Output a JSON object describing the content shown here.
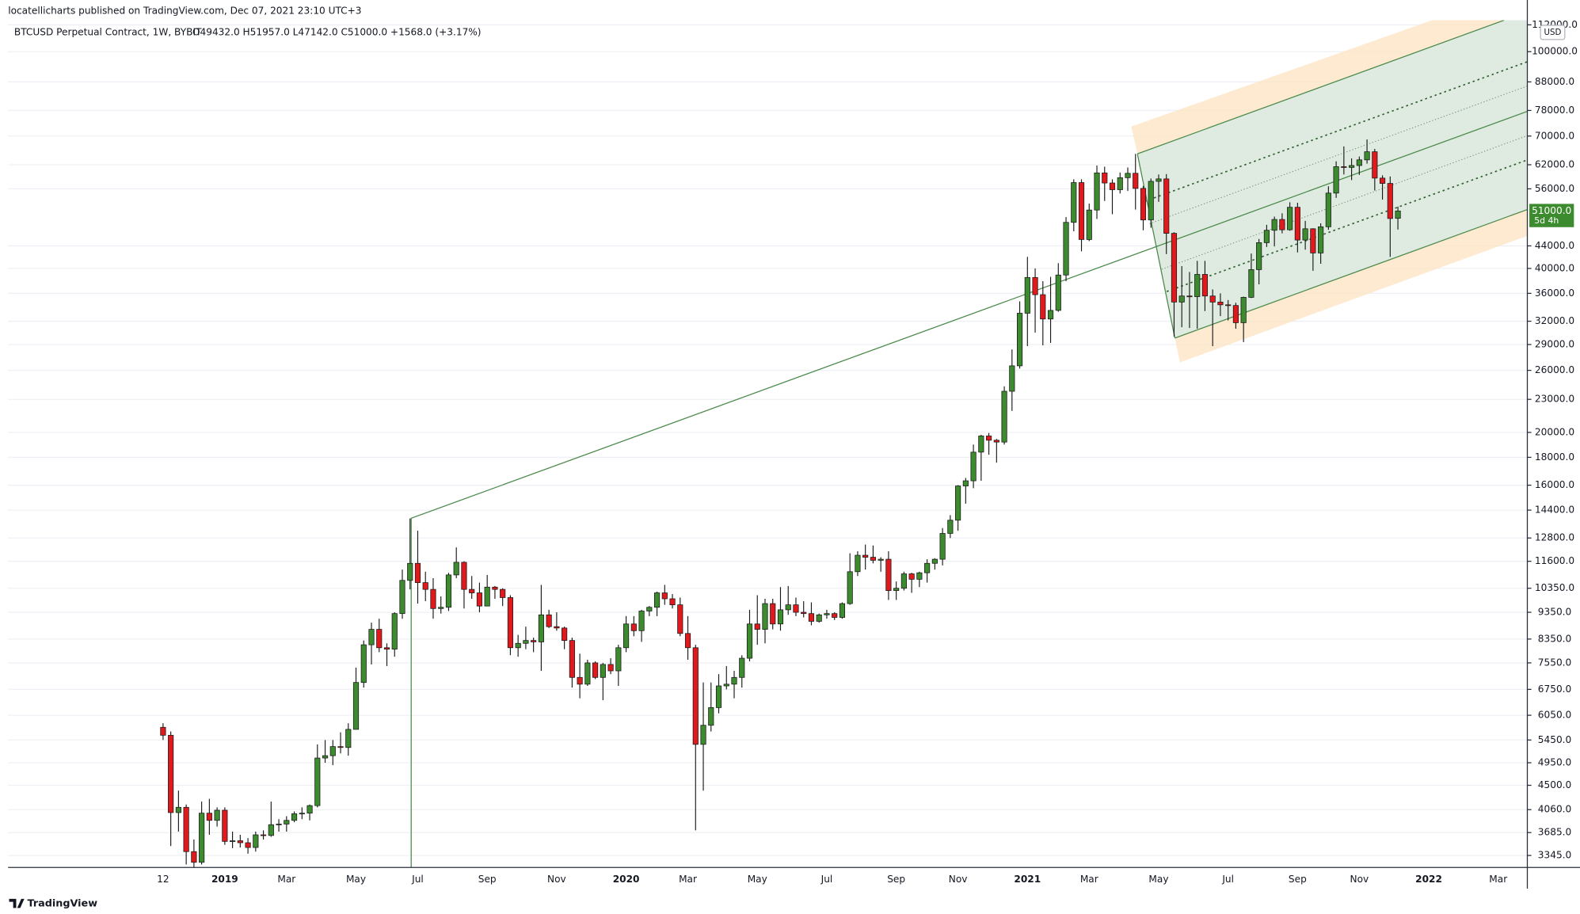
{
  "header": {
    "publisher": "locatellicharts published on TradingView.com, Dec 07, 2021 23:10 UTC+3",
    "brand": "TradingView"
  },
  "chart_data": {
    "type": "candlestick",
    "symbol": "BTCUSD Perpetual Contract, 1W, BYBIT",
    "ohlc_legend": "O49432.0 H51957.0 L47142.0 C51000.0 +1568.0 (+3.17%)",
    "currency": "USD",
    "log_scale": true,
    "grid": true,
    "up_color": "#3d8b2f",
    "down_color": "#e0191c",
    "categories": [
      "12",
      null,
      null,
      null,
      null,
      null,
      null,
      null,
      "2019",
      null,
      null,
      null,
      null,
      null,
      null,
      null,
      "Mar",
      null,
      null,
      null,
      null,
      null,
      null,
      null,
      null,
      "May",
      null,
      null,
      null,
      null,
      null,
      null,
      null,
      "Jul",
      null,
      null,
      null,
      null,
      null,
      null,
      null,
      null,
      "Sep",
      null,
      null,
      null,
      null,
      null,
      null,
      null,
      null,
      "Nov",
      null,
      null,
      null,
      null,
      null,
      null,
      null,
      null,
      "2020",
      null,
      null,
      null,
      null,
      null,
      null,
      null,
      "Mar",
      null,
      null,
      null,
      null,
      null,
      null,
      null,
      null,
      "May",
      null,
      null,
      null,
      null,
      null,
      null,
      null,
      null,
      "Jul",
      null,
      null,
      null,
      null,
      null,
      null,
      null,
      null,
      "Sep",
      null,
      null,
      null,
      null,
      null,
      null,
      null,
      "Nov",
      null,
      null,
      null,
      null,
      null,
      null,
      null,
      null,
      "2021",
      null,
      null,
      null,
      null,
      null,
      null,
      null,
      "Mar",
      null,
      null,
      null,
      null,
      null,
      null,
      null,
      null,
      "May",
      null,
      null,
      null,
      null,
      null,
      null,
      null,
      null,
      "Jul",
      null,
      null,
      null,
      null,
      null,
      null,
      null,
      null,
      "Sep",
      null,
      null,
      null,
      null,
      null,
      null,
      null,
      "Nov",
      null,
      null,
      null,
      null,
      null,
      null,
      null,
      null,
      "2022",
      null,
      null,
      null,
      null,
      null,
      null,
      null,
      null,
      "Mar",
      null,
      null,
      null,
      null
    ],
    "values": [
      [
        5750,
        5850,
        5450,
        5560
      ],
      [
        5560,
        5650,
        3480,
        4010
      ],
      [
        4010,
        4400,
        3700,
        4100
      ],
      [
        4100,
        4150,
        3220,
        3400
      ],
      [
        3400,
        3580,
        3180,
        3250
      ],
      [
        3250,
        4200,
        3220,
        4000
      ],
      [
        4000,
        4250,
        3650,
        3880
      ],
      [
        3880,
        4100,
        3780,
        4050
      ],
      [
        4050,
        4100,
        3500,
        3550
      ],
      [
        3550,
        3700,
        3450,
        3560
      ],
      [
        3560,
        3650,
        3460,
        3530
      ],
      [
        3530,
        3600,
        3370,
        3460
      ],
      [
        3460,
        3700,
        3400,
        3650
      ],
      [
        3650,
        3720,
        3580,
        3640
      ],
      [
        3640,
        4200,
        3620,
        3810
      ],
      [
        3810,
        3900,
        3700,
        3820
      ],
      [
        3820,
        3950,
        3700,
        3880
      ],
      [
        3880,
        4030,
        3850,
        3990
      ],
      [
        3990,
        4100,
        3900,
        4000
      ],
      [
        4000,
        4150,
        3880,
        4130
      ],
      [
        4130,
        5350,
        4100,
        5050
      ],
      [
        5050,
        5450,
        4950,
        5100
      ],
      [
        5100,
        5450,
        4900,
        5300
      ],
      [
        5300,
        5630,
        5150,
        5280
      ],
      [
        5280,
        5850,
        5100,
        5700
      ],
      [
        5700,
        7400,
        5700,
        6950
      ],
      [
        6950,
        8300,
        6800,
        8150
      ],
      [
        8150,
        8950,
        7500,
        8700
      ],
      [
        8700,
        9100,
        7900,
        8050
      ],
      [
        8050,
        8200,
        7450,
        8000
      ],
      [
        8000,
        9350,
        7750,
        9300
      ],
      [
        9300,
        11200,
        9100,
        10700
      ],
      [
        10700,
        13900,
        10300,
        11500
      ],
      [
        11500,
        13200,
        9700,
        10600
      ],
      [
        10600,
        11100,
        9800,
        10300
      ],
      [
        10300,
        10800,
        9100,
        9500
      ],
      [
        9500,
        10000,
        9300,
        9550
      ],
      [
        9550,
        11050,
        9400,
        10950
      ],
      [
        10950,
        12300,
        10800,
        11550
      ],
      [
        11550,
        11600,
        9500,
        10300
      ],
      [
        10300,
        10900,
        9900,
        10150
      ],
      [
        10150,
        10600,
        9350,
        9600
      ],
      [
        9600,
        10950,
        9600,
        10400
      ],
      [
        10400,
        10450,
        9900,
        10300
      ],
      [
        10300,
        10350,
        9600,
        9950
      ],
      [
        9950,
        10050,
        7800,
        8050
      ],
      [
        8050,
        8500,
        7750,
        8200
      ],
      [
        8200,
        8800,
        8000,
        8300
      ],
      [
        8300,
        8400,
        7900,
        8250
      ],
      [
        8250,
        10500,
        7300,
        9250
      ],
      [
        9250,
        9450,
        8750,
        8800
      ],
      [
        8800,
        9350,
        8650,
        8750
      ],
      [
        8750,
        8800,
        8000,
        8300
      ],
      [
        8300,
        8400,
        6800,
        7100
      ],
      [
        7100,
        7850,
        6500,
        6900
      ],
      [
        6900,
        7650,
        6850,
        7550
      ],
      [
        7550,
        7600,
        7050,
        7100
      ],
      [
        7100,
        7550,
        6450,
        7500
      ],
      [
        7500,
        7700,
        7200,
        7300
      ],
      [
        7300,
        8150,
        6850,
        8050
      ],
      [
        8050,
        9200,
        7900,
        8900
      ],
      [
        8900,
        9200,
        8450,
        8650
      ],
      [
        8650,
        9450,
        8250,
        9400
      ],
      [
        9400,
        9600,
        9200,
        9550
      ],
      [
        9550,
        10200,
        9200,
        10150
      ],
      [
        10150,
        10500,
        9650,
        9900
      ],
      [
        9900,
        10100,
        9500,
        9650
      ],
      [
        9650,
        9950,
        8450,
        8550
      ],
      [
        8550,
        9200,
        7650,
        8050
      ],
      [
        8050,
        8150,
        3720,
        5350
      ],
      [
        5350,
        6950,
        4400,
        5800
      ],
      [
        5800,
        6950,
        5650,
        6250
      ],
      [
        6250,
        7200,
        6100,
        6850
      ],
      [
        6850,
        7450,
        6750,
        6900
      ],
      [
        6900,
        7300,
        6500,
        7100
      ],
      [
        7100,
        7800,
        6800,
        7700
      ],
      [
        7700,
        9450,
        7600,
        8900
      ],
      [
        8900,
        10050,
        8150,
        8700
      ],
      [
        8700,
        9900,
        8200,
        9700
      ],
      [
        9700,
        9900,
        8700,
        8900
      ],
      [
        8900,
        10400,
        8650,
        9450
      ],
      [
        9450,
        10450,
        9250,
        9650
      ],
      [
        9650,
        9950,
        9200,
        9350
      ],
      [
        9350,
        9800,
        9150,
        9300
      ],
      [
        9300,
        9750,
        8850,
        9000
      ],
      [
        9000,
        9300,
        8950,
        9250
      ],
      [
        9250,
        9450,
        9100,
        9300
      ],
      [
        9300,
        9350,
        9050,
        9150
      ],
      [
        9150,
        9750,
        9100,
        9700
      ],
      [
        9700,
        12000,
        9650,
        11100
      ],
      [
        11100,
        12100,
        10900,
        11900
      ],
      [
        11900,
        12450,
        11200,
        11800
      ],
      [
        11800,
        12400,
        11500,
        11650
      ],
      [
        11650,
        11800,
        11100,
        11700
      ],
      [
        11700,
        12100,
        9850,
        10250
      ],
      [
        10250,
        10650,
        9850,
        10350
      ],
      [
        10350,
        11100,
        10250,
        11000
      ],
      [
        11000,
        11050,
        10150,
        10750
      ],
      [
        10750,
        11100,
        10400,
        11050
      ],
      [
        11050,
        11700,
        10600,
        11500
      ],
      [
        11500,
        11750,
        11200,
        11700
      ],
      [
        11700,
        13350,
        11400,
        13050
      ],
      [
        13050,
        14100,
        12800,
        13800
      ],
      [
        13800,
        16000,
        13200,
        15950
      ],
      [
        15950,
        16500,
        14800,
        16300
      ],
      [
        16300,
        19000,
        15800,
        18400
      ],
      [
        18400,
        19800,
        16300,
        19700
      ],
      [
        19700,
        19950,
        18200,
        19350
      ],
      [
        19350,
        19450,
        17600,
        19200
      ],
      [
        19200,
        24300,
        19000,
        23800
      ],
      [
        23800,
        28400,
        21900,
        26500
      ],
      [
        26500,
        34800,
        26200,
        33100
      ],
      [
        33100,
        42000,
        28800,
        38500
      ],
      [
        38500,
        40000,
        30500,
        35800
      ],
      [
        35800,
        37900,
        28900,
        32300
      ],
      [
        32300,
        38600,
        29200,
        33500
      ],
      [
        33500,
        40900,
        33300,
        38900
      ],
      [
        38900,
        49700,
        37900,
        48600
      ],
      [
        48600,
        58300,
        46800,
        57500
      ],
      [
        57500,
        58300,
        43000,
        45200
      ],
      [
        45200,
        52600,
        44900,
        51200
      ],
      [
        51200,
        61800,
        49300,
        59900
      ],
      [
        59900,
        61500,
        53200,
        57400
      ],
      [
        57400,
        58300,
        50300,
        55800
      ],
      [
        55800,
        60000,
        54900,
        58700
      ],
      [
        58700,
        61300,
        55500,
        59800
      ],
      [
        59800,
        64900,
        51300,
        56100
      ],
      [
        56100,
        56700,
        47000,
        49100
      ],
      [
        49100,
        58500,
        47500,
        57800
      ],
      [
        57800,
        59500,
        53000,
        58400
      ],
      [
        58400,
        59600,
        42500,
        46400
      ],
      [
        46400,
        46600,
        30000,
        34700
      ],
      [
        34700,
        40400,
        31200,
        35600
      ],
      [
        35600,
        39400,
        31100,
        35500
      ],
      [
        35500,
        41300,
        31000,
        39000
      ],
      [
        39000,
        41300,
        33400,
        35600
      ],
      [
        35600,
        36600,
        28800,
        34700
      ],
      [
        34700,
        36000,
        32700,
        34300
      ],
      [
        34300,
        35000,
        32100,
        34200
      ],
      [
        34200,
        34600,
        31000,
        31800
      ],
      [
        31800,
        35500,
        29300,
        35400
      ],
      [
        35400,
        42600,
        35300,
        39800
      ],
      [
        39800,
        45300,
        37400,
        44600
      ],
      [
        44600,
        48100,
        43800,
        47000
      ],
      [
        47000,
        49800,
        43900,
        49200
      ],
      [
        49200,
        50500,
        46400,
        47100
      ],
      [
        47100,
        52900,
        46900,
        51800
      ],
      [
        51800,
        52800,
        42800,
        45100
      ],
      [
        45100,
        48900,
        43300,
        47300
      ],
      [
        47300,
        47400,
        39600,
        42700
      ],
      [
        42700,
        48400,
        40800,
        47700
      ],
      [
        47700,
        56600,
        47100,
        55000
      ],
      [
        55000,
        62900,
        53900,
        61500
      ],
      [
        61500,
        67000,
        59500,
        61300
      ],
      [
        61300,
        63700,
        58100,
        61800
      ],
      [
        61800,
        64200,
        59400,
        63300
      ],
      [
        63300,
        69000,
        62300,
        65500
      ],
      [
        65500,
        66300,
        55600,
        58600
      ],
      [
        58600,
        59300,
        53500,
        57300
      ],
      [
        57300,
        59000,
        42000,
        49400
      ],
      [
        49432,
        51957,
        47142,
        51000
      ],
      null,
      null,
      null,
      null,
      null,
      null,
      null,
      null,
      null,
      null,
      null,
      null,
      null,
      null,
      null,
      null,
      null
    ],
    "last_price": {
      "value": 51000,
      "label": "51000.0",
      "countdown": "5d 4h"
    },
    "ylim": [
      3180,
      114200
    ],
    "yticks": [
      {
        "value": 3345,
        "label": "3345.0"
      },
      {
        "value": 3685,
        "label": "3685.0"
      },
      {
        "value": 4060,
        "label": "4060.0"
      },
      {
        "value": 4500,
        "label": "4500.0"
      },
      {
        "value": 4950,
        "label": "4950.0"
      },
      {
        "value": 5450,
        "label": "5450.0"
      },
      {
        "value": 6050,
        "label": "6050.0"
      },
      {
        "value": 6750,
        "label": "6750.0"
      },
      {
        "value": 7550,
        "label": "7550.0"
      },
      {
        "value": 8350,
        "label": "8350.0"
      },
      {
        "value": 9350,
        "label": "9350.0"
      },
      {
        "value": 10350,
        "label": "10350.0"
      },
      {
        "value": 11600,
        "label": "11600.0"
      },
      {
        "value": 12800,
        "label": "12800.0"
      },
      {
        "value": 14400,
        "label": "14400.0"
      },
      {
        "value": 16000,
        "label": "16000.0"
      },
      {
        "value": 18000,
        "label": "18000.0"
      },
      {
        "value": 20000,
        "label": "20000.0"
      },
      {
        "value": 23000,
        "label": "23000.0"
      },
      {
        "value": 26000,
        "label": "26000.0"
      },
      {
        "value": 29000,
        "label": "29000.0"
      },
      {
        "value": 32000,
        "label": "32000.0"
      },
      {
        "value": 36000,
        "label": "36000.0"
      },
      {
        "value": 40000,
        "label": "40000.0"
      },
      {
        "value": 44000,
        "label": "44000.0"
      },
      {
        "value": 56000,
        "label": "56000.0"
      },
      {
        "value": 62000,
        "label": "62000.0"
      },
      {
        "value": 70000,
        "label": "70000.0"
      },
      {
        "value": 78000,
        "label": "78000.0"
      },
      {
        "value": 88000,
        "label": "88000.0"
      },
      {
        "value": 100000,
        "label": "100000.0"
      },
      {
        "value": 112000,
        "label": "112000.0"
      }
    ]
  }
}
